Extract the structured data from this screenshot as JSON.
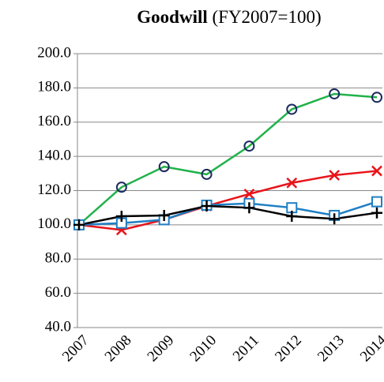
{
  "chart_data": {
    "type": "line",
    "title": "Goodwill",
    "subtitle": "(FY2007=100)",
    "categories": [
      "2007",
      "2008",
      "2009",
      "2010",
      "2011",
      "2012",
      "2013",
      "2014"
    ],
    "series": [
      {
        "color": "#21b24b",
        "marker": "circle",
        "marker_color": "#1b2a5e",
        "values": [
          100,
          122,
          134,
          129.5,
          146,
          167.5,
          176.5,
          174.5
        ]
      },
      {
        "color": "#e8141b",
        "marker": "x",
        "marker_color": "#e8141b",
        "values": [
          100,
          97,
          103,
          111,
          118,
          124.5,
          129,
          131.5
        ]
      },
      {
        "color": "#1f7fc4",
        "marker": "square",
        "marker_color": "#1f7fc4",
        "values": [
          100,
          101,
          103,
          111.5,
          112.5,
          110,
          105.5,
          113.5
        ]
      },
      {
        "color": "#000000",
        "marker": "plus",
        "marker_color": "#000000",
        "values": [
          100,
          105,
          105.5,
          111,
          110,
          105,
          103.5,
          107
        ]
      }
    ],
    "ylim": [
      40,
      200
    ],
    "yticks": [
      {
        "value": 40,
        "label": "40.0"
      },
      {
        "value": 60,
        "label": "60.0"
      },
      {
        "value": 80,
        "label": "80.0"
      },
      {
        "value": 100,
        "label": "100.0"
      },
      {
        "value": 120,
        "label": "120.0"
      },
      {
        "value": 140,
        "label": "140.0"
      },
      {
        "value": 160,
        "label": "160.0"
      },
      {
        "value": 180,
        "label": "180.0"
      },
      {
        "value": 200,
        "label": "200.0"
      }
    ],
    "grid": true
  }
}
